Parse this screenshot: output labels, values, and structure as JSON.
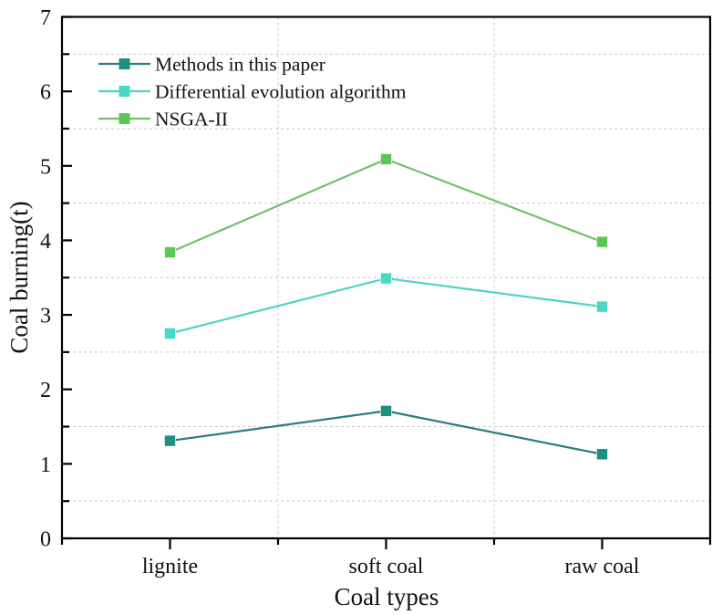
{
  "chart_data": {
    "type": "line",
    "title": "",
    "xlabel": "Coal types",
    "ylabel": "Coal burning(t)",
    "categories": [
      "lignite",
      "soft coal",
      "raw coal"
    ],
    "ylim": [
      0,
      7
    ],
    "yticks": [
      0,
      1,
      2,
      3,
      4,
      5,
      6,
      7
    ],
    "y_minor_ticks": [
      0.5,
      1.5,
      2.5,
      3.5,
      4.5,
      5.5,
      6.5
    ],
    "grid": true,
    "legend_position": "top-left",
    "series": [
      {
        "name": "Methods in this paper",
        "values": [
          1.31,
          1.71,
          1.13
        ],
        "marker": "square",
        "line_color": "#2d7b83",
        "marker_color": "#1f8f80"
      },
      {
        "name": "Differential evolution algorithm",
        "values": [
          2.75,
          3.49,
          3.11
        ],
        "marker": "square",
        "line_color": "#4fd3c4",
        "marker_color": "#45d9c6"
      },
      {
        "name": "NSGA-II",
        "values": [
          3.84,
          5.09,
          3.98
        ],
        "marker": "square",
        "line_color": "#70c06a",
        "marker_color": "#5ec656"
      }
    ]
  }
}
